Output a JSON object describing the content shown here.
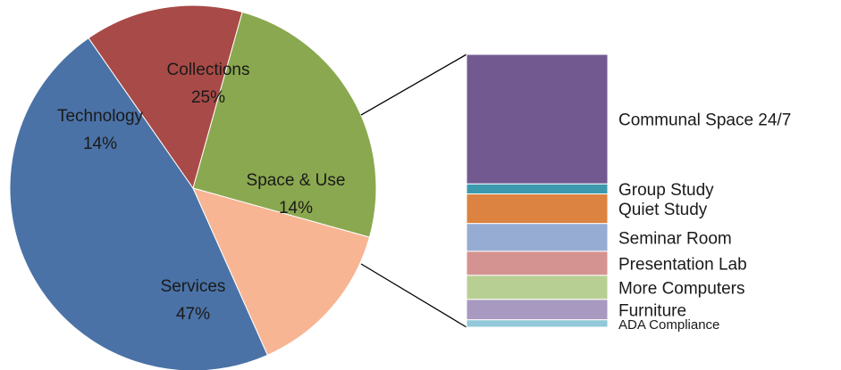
{
  "chart_data": [
    {
      "type": "pie",
      "categories": [
        "Services",
        "Technology",
        "Collections",
        "Space & Use"
      ],
      "values": [
        47,
        14,
        25,
        14
      ],
      "value_labels": [
        "47%",
        "14%",
        "25%",
        "14%"
      ],
      "colors": [
        "#4a72a6",
        "#a84a47",
        "#8aa84f",
        "#f7b593"
      ],
      "exploded_slice": "Space & Use"
    },
    {
      "type": "bar",
      "stacked": true,
      "orientation": "vertical",
      "breakdown_of": "Space & Use",
      "categories": [
        "Communal Space 24/7",
        "Group Study",
        "Quiet Study",
        "Seminar Room",
        "Presentation Lab",
        "More Computers",
        "Furniture",
        "ADA Compliance"
      ],
      "values": [
        3.5,
        0.27,
        0.8,
        0.75,
        0.65,
        0.65,
        0.55,
        0.2
      ],
      "colors": [
        "#725a91",
        "#3d9aae",
        "#dc8341",
        "#97acd3",
        "#d49390",
        "#b8cf93",
        "#a899c0",
        "#92c8d7"
      ]
    }
  ]
}
